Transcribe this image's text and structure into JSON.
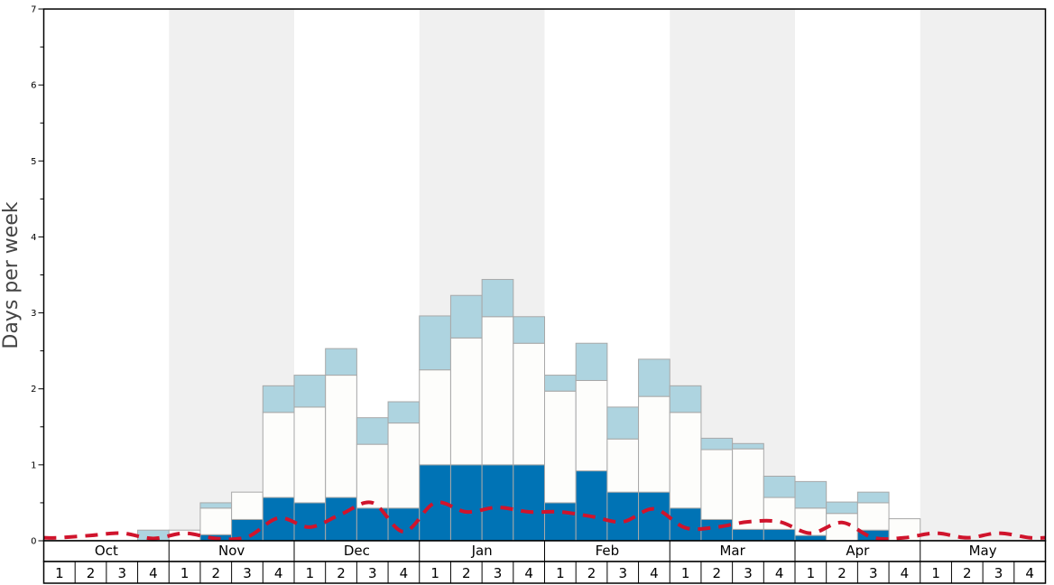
{
  "chart_data": {
    "type": "bar",
    "ylabel": "Days per week",
    "ylim": [
      0,
      7
    ],
    "yticks": [
      "0",
      "1",
      "2",
      "3",
      "4",
      "5",
      "6",
      "7"
    ],
    "grid": false,
    "months": [
      "Oct",
      "Nov",
      "Dec",
      "Jan",
      "Feb",
      "Mar",
      "Apr",
      "May"
    ],
    "week_labels": [
      "1",
      "2",
      "3",
      "4"
    ],
    "stacked": true,
    "series": [
      {
        "key": "dark",
        "color": "#0073b5",
        "values": [
          0,
          0,
          0,
          0,
          0,
          0.08,
          0.28,
          0.57,
          0.5,
          0.57,
          0.43,
          0.43,
          1.0,
          1.0,
          1.0,
          1.0,
          0.5,
          0.92,
          0.64,
          0.64,
          0.43,
          0.28,
          0.15,
          0.15,
          0.07,
          0,
          0.14,
          0,
          0,
          0,
          0,
          0
        ]
      },
      {
        "key": "white",
        "color": "#fdfdfb",
        "values": [
          0,
          0,
          0,
          0,
          0.14,
          0.35,
          0.36,
          1.12,
          1.26,
          1.61,
          0.84,
          1.12,
          1.25,
          1.67,
          1.95,
          1.6,
          1.47,
          1.19,
          0.7,
          1.26,
          1.26,
          0.92,
          1.06,
          0.42,
          0.36,
          0.36,
          0.36,
          0.29,
          0,
          0,
          0,
          0
        ]
      },
      {
        "key": "light",
        "color": "#aed4e0",
        "values": [
          0,
          0,
          0,
          0.14,
          0,
          0.07,
          0,
          0.35,
          0.42,
          0.35,
          0.35,
          0.28,
          0.71,
          0.56,
          0.49,
          0.35,
          0.21,
          0.49,
          0.42,
          0.49,
          0.35,
          0.15,
          0.07,
          0.28,
          0.35,
          0.15,
          0.14,
          0,
          0,
          0,
          0,
          0
        ]
      }
    ],
    "average_line": {
      "color": "#d0142c",
      "values": [
        0.04,
        0.07,
        0.1,
        0.03,
        0.1,
        0.03,
        0.05,
        0.3,
        0.18,
        0.35,
        0.5,
        0.12,
        0.5,
        0.38,
        0.44,
        0.38,
        0.38,
        0.32,
        0.25,
        0.42,
        0.17,
        0.18,
        0.25,
        0.25,
        0.1,
        0.24,
        0.04,
        0.04,
        0.1,
        0.04,
        0.1,
        0.04
      ]
    },
    "shaded_months": [
      "Nov",
      "Jan",
      "Mar",
      "May"
    ],
    "shade_color": "#f0f0f0"
  }
}
